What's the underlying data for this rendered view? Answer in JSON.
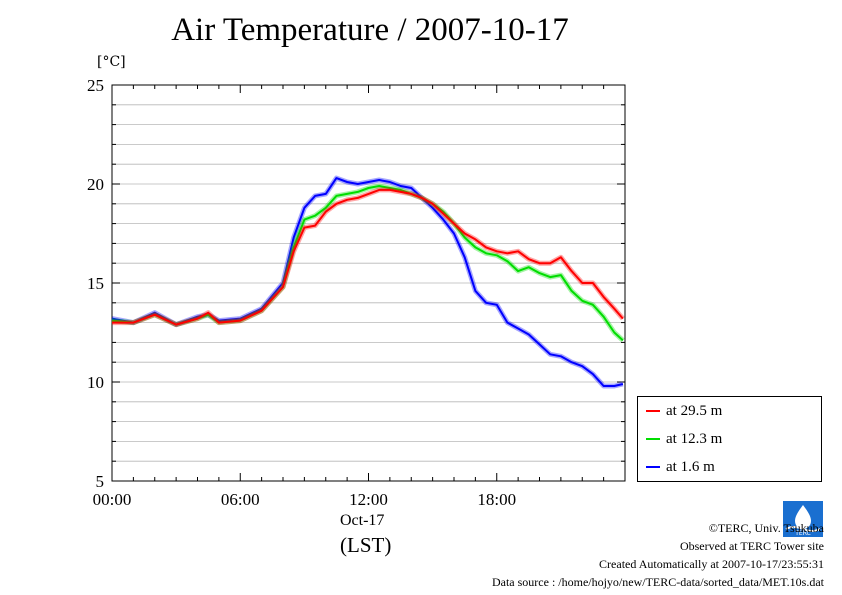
{
  "chart_data": {
    "type": "line",
    "title": "Air Temperature / 2007-10-17",
    "ylabel": "[°C]",
    "xlabel": "Oct-17",
    "xunit": "(LST)",
    "ylim": [
      5,
      25
    ],
    "yticks": [
      "5",
      "10",
      "15",
      "20",
      "25"
    ],
    "xlim": [
      0,
      24
    ],
    "xticks": [
      {
        "h": 0,
        "label": "00:00"
      },
      {
        "h": 6,
        "label": "06:00"
      },
      {
        "h": 12,
        "label": "12:00"
      },
      {
        "h": 18,
        "label": "18:00"
      }
    ],
    "grid": true,
    "legend_position": "bottom-right",
    "x": [
      0,
      1,
      2,
      3,
      4,
      4.5,
      5,
      6,
      7,
      8,
      8.5,
      9,
      9.5,
      10,
      10.5,
      11,
      11.5,
      12,
      12.5,
      13,
      13.5,
      14,
      14.5,
      15,
      15.5,
      16,
      16.5,
      17,
      17.5,
      18,
      18.5,
      19,
      19.5,
      20,
      20.5,
      21,
      21.5,
      22,
      22.5,
      23,
      23.5,
      23.9
    ],
    "series": [
      {
        "name": "at 29.5 m",
        "color": "#ff0000",
        "values": [
          13.0,
          13.0,
          13.4,
          12.9,
          13.2,
          13.5,
          13.0,
          13.1,
          13.6,
          14.8,
          16.6,
          17.8,
          17.9,
          18.6,
          19.0,
          19.2,
          19.3,
          19.5,
          19.7,
          19.7,
          19.6,
          19.5,
          19.3,
          19.0,
          18.5,
          18.0,
          17.5,
          17.2,
          16.8,
          16.6,
          16.5,
          16.6,
          16.2,
          16.0,
          16.0,
          16.3,
          15.6,
          15.0,
          15.0,
          14.3,
          13.7,
          13.2
        ]
      },
      {
        "name": "at 12.3 m",
        "color": "#00dd00",
        "values": [
          13.1,
          13.0,
          13.4,
          12.9,
          13.2,
          13.4,
          13.0,
          13.1,
          13.6,
          14.8,
          16.8,
          18.2,
          18.4,
          18.8,
          19.4,
          19.5,
          19.6,
          19.8,
          19.9,
          19.8,
          19.7,
          19.5,
          19.3,
          19.0,
          18.6,
          18.0,
          17.3,
          16.8,
          16.5,
          16.4,
          16.1,
          15.6,
          15.8,
          15.5,
          15.3,
          15.4,
          14.6,
          14.1,
          13.9,
          13.3,
          12.5,
          12.1
        ]
      },
      {
        "name": "at 1.6 m",
        "color": "#0000ff",
        "values": [
          13.2,
          13.0,
          13.5,
          12.9,
          13.3,
          13.4,
          13.1,
          13.2,
          13.7,
          15.0,
          17.3,
          18.8,
          19.4,
          19.5,
          20.3,
          20.1,
          20.0,
          20.1,
          20.2,
          20.1,
          19.9,
          19.8,
          19.3,
          18.8,
          18.2,
          17.5,
          16.3,
          14.6,
          14.0,
          13.9,
          13.0,
          12.7,
          12.4,
          11.9,
          11.4,
          11.3,
          11.0,
          10.8,
          10.4,
          9.8,
          9.8,
          9.9
        ]
      }
    ]
  },
  "legend": {
    "items": [
      {
        "label": "at 29.5 m",
        "color": "#ff0000"
      },
      {
        "label": "at 12.3 m",
        "color": "#00dd00"
      },
      {
        "label": "at 1.6 m",
        "color": "#0000ff"
      }
    ]
  },
  "credits": {
    "line1": "©TERC, Univ. Tsukuba",
    "line2": "Observed at TERC Tower site",
    "line3": "Created Automatically at 2007-10-17/23:55:31",
    "line4": "Data source : /home/hojyo/new/TERC-data/sorted_data/MET.10s.dat"
  },
  "logo": {
    "text": "TERC",
    "color": "#1a6fd0"
  }
}
